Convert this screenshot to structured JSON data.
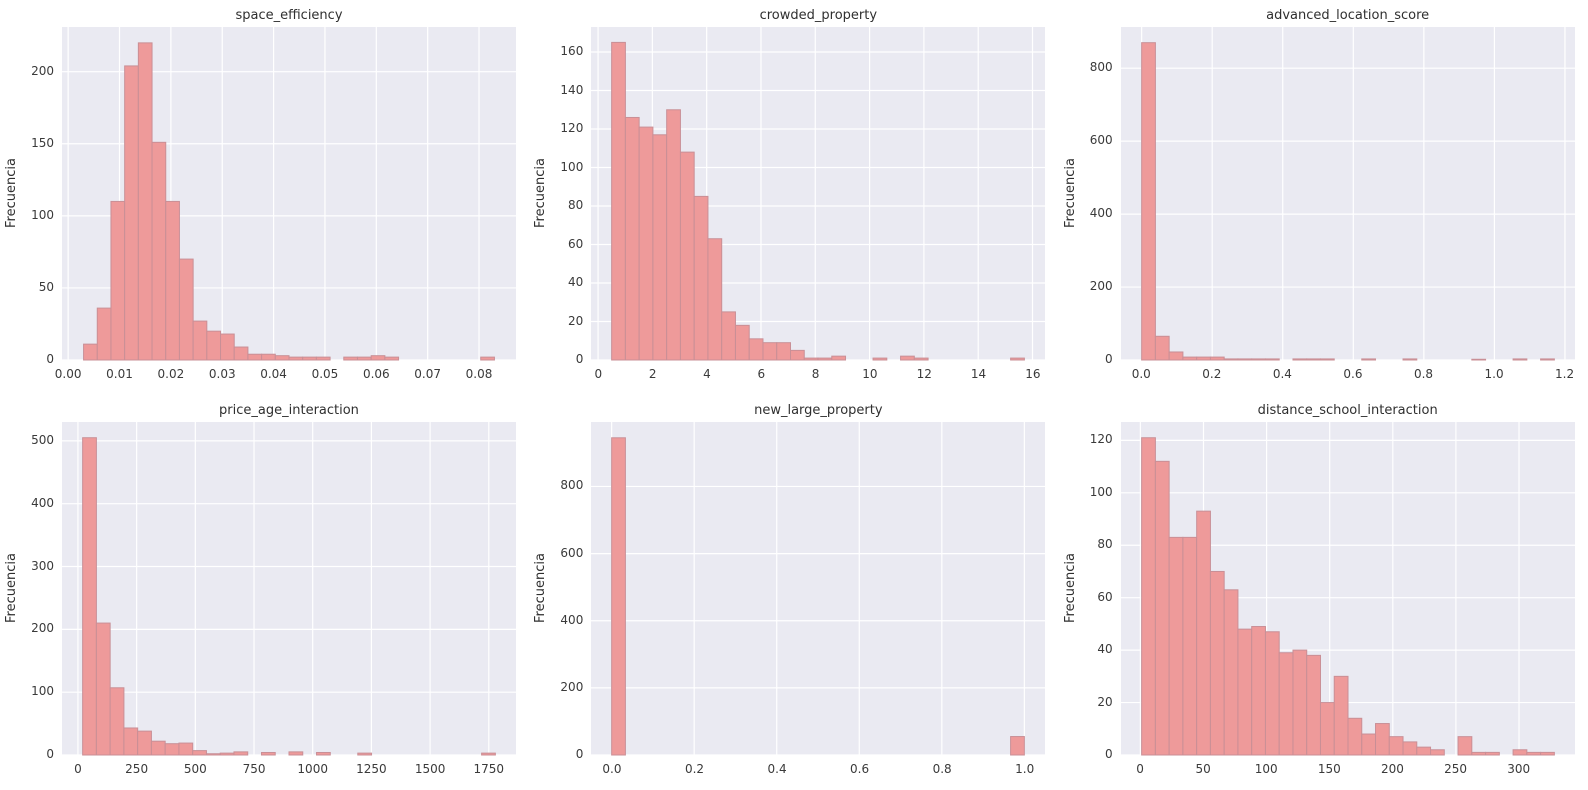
{
  "figure": {
    "background": "#ffffff",
    "axes_background": "#eaeaf2",
    "grid_color": "#ffffff",
    "bar_fill": "#ee9a9a",
    "bar_edge": "#c98f96",
    "text_color": "#3a3a3a",
    "ylabel": "Frecuencia"
  },
  "chart_data": [
    {
      "type": "bar",
      "title": "space_efficiency",
      "ylabel": "Frecuencia",
      "bins_start": 0.003,
      "bin_width": 0.0026667,
      "values": [
        11,
        36,
        110,
        204,
        220,
        151,
        110,
        70,
        27,
        20,
        18,
        9,
        4,
        4,
        3,
        2,
        2,
        2,
        0,
        2,
        2,
        3,
        2,
        0,
        0,
        0,
        0,
        0,
        0,
        2
      ],
      "xlim": [
        -0.0012,
        0.0872
      ],
      "ylim": [
        0,
        231
      ],
      "xtick_values": [
        0.0,
        0.01,
        0.02,
        0.03,
        0.04,
        0.05,
        0.06,
        0.07,
        0.08
      ],
      "xtick_labels": [
        "0.00",
        "0.01",
        "0.02",
        "0.03",
        "0.04",
        "0.05",
        "0.06",
        "0.07",
        "0.08"
      ],
      "ytick_values": [
        0,
        50,
        100,
        150,
        200
      ],
      "ytick_labels": [
        "0",
        "50",
        "100",
        "150",
        "200"
      ],
      "grid": true,
      "legend": "none"
    },
    {
      "type": "bar",
      "title": "crowded_property",
      "ylabel": "Frecuencia",
      "bins_start": 0.5,
      "bin_width": 0.5067,
      "values": [
        165,
        126,
        121,
        117,
        130,
        108,
        85,
        63,
        25,
        18,
        11,
        9,
        9,
        5,
        1,
        1,
        2,
        0,
        0,
        1,
        0,
        2,
        1,
        0,
        0,
        0,
        0,
        0,
        0,
        1
      ],
      "xlim": [
        -0.26,
        16.46
      ],
      "ylim": [
        0,
        173
      ],
      "xtick_values": [
        0,
        2,
        4,
        6,
        8,
        10,
        12,
        14,
        16
      ],
      "xtick_labels": [
        "0",
        "2",
        "4",
        "6",
        "8",
        "10",
        "12",
        "14",
        "16"
      ],
      "ytick_values": [
        0,
        20,
        40,
        60,
        80,
        100,
        120,
        140,
        160
      ],
      "ytick_labels": [
        "0",
        "20",
        "40",
        "60",
        "80",
        "100",
        "120",
        "140",
        "160"
      ],
      "grid": true,
      "legend": "none"
    },
    {
      "type": "bar",
      "title": "advanced_location_score",
      "ylabel": "Frecuencia",
      "bins_start": 0.0,
      "bin_width": 0.039,
      "values": [
        870,
        65,
        22,
        8,
        8,
        8,
        3,
        3,
        3,
        3,
        0,
        3,
        3,
        3,
        0,
        0,
        3,
        0,
        0,
        3,
        0,
        0,
        0,
        0,
        2,
        0,
        0,
        3,
        0,
        3
      ],
      "xlim": [
        -0.0585,
        1.2285
      ],
      "ylim": [
        0,
        913
      ],
      "xtick_values": [
        0.0,
        0.2,
        0.4,
        0.6,
        0.8,
        1.0,
        1.2
      ],
      "xtick_labels": [
        "0.0",
        "0.2",
        "0.4",
        "0.6",
        "0.8",
        "1.0",
        "1.2"
      ],
      "ytick_values": [
        0,
        200,
        400,
        600,
        800
      ],
      "ytick_labels": [
        "0",
        "200",
        "400",
        "600",
        "800"
      ],
      "grid": true,
      "legend": "none"
    },
    {
      "type": "bar",
      "title": "price_age_interaction",
      "ylabel": "Frecuencia",
      "bins_start": 20,
      "bin_width": 58.6,
      "values": [
        505,
        210,
        107,
        43,
        38,
        22,
        18,
        19,
        7,
        2,
        3,
        5,
        0,
        4,
        0,
        5,
        0,
        4,
        0,
        0,
        3,
        0,
        0,
        0,
        0,
        0,
        0,
        0,
        0,
        3
      ],
      "xlim": [
        -67.9,
        1865.9
      ],
      "ylim": [
        0,
        530
      ],
      "xtick_values": [
        0,
        250,
        500,
        750,
        1000,
        1250,
        1500,
        1750
      ],
      "xtick_labels": [
        "0",
        "250",
        "500",
        "750",
        "1000",
        "1250",
        "1500",
        "1750"
      ],
      "ytick_values": [
        0,
        100,
        200,
        300,
        400,
        500
      ],
      "ytick_labels": [
        "0",
        "100",
        "200",
        "300",
        "400",
        "500"
      ],
      "grid": true,
      "legend": "none"
    },
    {
      "type": "bar",
      "title": "new_large_property",
      "ylabel": "Frecuencia",
      "bins_start": 0.0,
      "bin_width": 0.033333,
      "values": [
        945,
        0,
        0,
        0,
        0,
        0,
        0,
        0,
        0,
        0,
        0,
        0,
        0,
        0,
        0,
        0,
        0,
        0,
        0,
        0,
        0,
        0,
        0,
        0,
        0,
        0,
        0,
        0,
        0,
        55
      ],
      "xlim": [
        -0.05,
        1.05
      ],
      "ylim": [
        0,
        992
      ],
      "xtick_values": [
        0.0,
        0.2,
        0.4,
        0.6,
        0.8,
        1.0
      ],
      "xtick_labels": [
        "0.0",
        "0.2",
        "0.4",
        "0.6",
        "0.8",
        "1.0"
      ],
      "ytick_values": [
        0,
        200,
        400,
        600,
        800
      ],
      "ytick_labels": [
        "0",
        "200",
        "400",
        "600",
        "800"
      ],
      "grid": true,
      "legend": "none"
    },
    {
      "type": "bar",
      "title": "distance_school_interaction",
      "ylabel": "Frecuencia",
      "bins_start": 1.0,
      "bin_width": 10.9,
      "values": [
        121,
        112,
        83,
        83,
        93,
        70,
        63,
        48,
        49,
        47,
        39,
        40,
        38,
        20,
        30,
        14,
        8,
        12,
        7,
        5,
        3,
        2,
        0,
        7,
        1,
        1,
        0,
        2,
        1,
        1
      ],
      "xlim": [
        -15.35,
        344.35
      ],
      "ylim": [
        0,
        127
      ],
      "xtick_values": [
        0,
        50,
        100,
        150,
        200,
        250,
        300
      ],
      "xtick_labels": [
        "0",
        "50",
        "100",
        "150",
        "200",
        "250",
        "300"
      ],
      "ytick_values": [
        0,
        20,
        40,
        60,
        80,
        100,
        120
      ],
      "ytick_labels": [
        "0",
        "20",
        "40",
        "60",
        "80",
        "100",
        "120"
      ],
      "grid": true,
      "legend": "none"
    }
  ]
}
